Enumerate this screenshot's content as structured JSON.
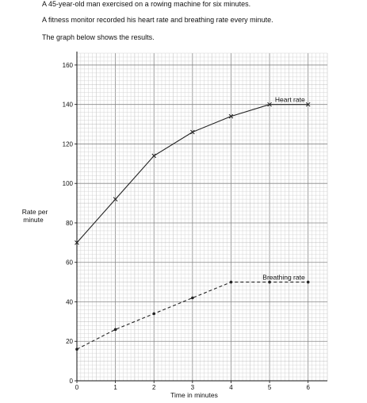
{
  "intro": {
    "line1": "A 45-year-old man exercised on a rowing machine for six minutes.",
    "line2": "A fitness monitor recorded his heart rate and breathing rate every minute.",
    "line3": "The graph below shows the results."
  },
  "chart_data": {
    "type": "line",
    "title": "",
    "xlabel": "Time in minutes",
    "ylabel_lines": [
      "Rate per",
      "minute"
    ],
    "xlim": [
      0,
      6.5
    ],
    "ylim": [
      0,
      166
    ],
    "x_ticks": [
      0,
      1,
      2,
      3,
      4,
      5,
      6
    ],
    "y_ticks": [
      0,
      20,
      40,
      60,
      80,
      100,
      120,
      140,
      160
    ],
    "grid": true,
    "series": [
      {
        "name": "Heart rate",
        "x": [
          0,
          1,
          2,
          3,
          4,
          5,
          6
        ],
        "y": [
          70,
          92,
          114,
          126,
          134,
          140,
          140
        ],
        "marker": "cross",
        "dash": "solid",
        "color": "#222222"
      },
      {
        "name": "Breathing rate",
        "x": [
          0,
          1,
          2,
          3,
          4,
          5,
          6
        ],
        "y": [
          16,
          26,
          34,
          42,
          50,
          50,
          50
        ],
        "marker": "dot",
        "dash": "dashed",
        "color": "#222222"
      }
    ]
  }
}
